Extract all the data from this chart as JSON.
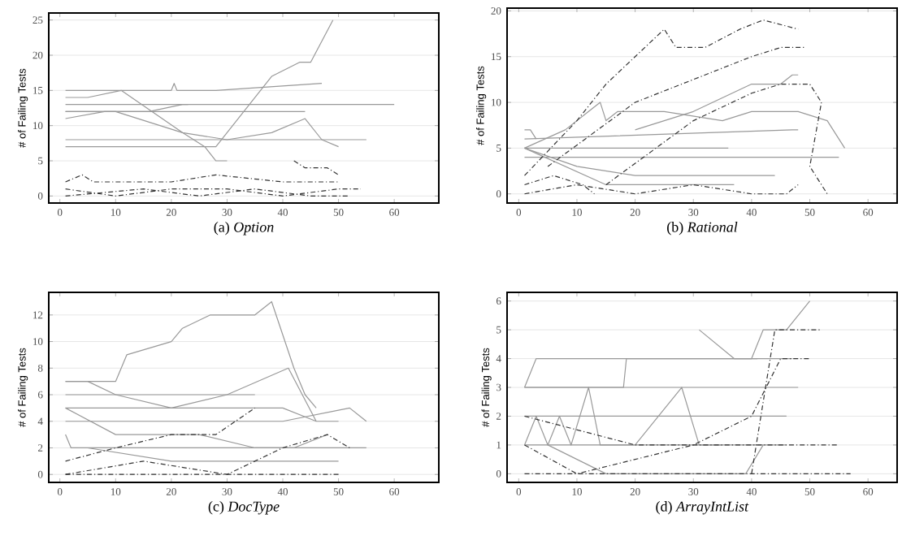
{
  "chart_data": [
    {
      "type": "line",
      "title": "(a) *Option*",
      "ylabel": "# of Failing Tests",
      "xlim": [
        -2,
        68
      ],
      "ylim": [
        -1,
        26
      ],
      "xticks": [
        0,
        10,
        20,
        30,
        40,
        50,
        60
      ],
      "yticks": [
        0,
        5,
        10,
        15,
        20,
        25
      ],
      "grid": "y",
      "series": [
        {
          "color": "#999999",
          "line_style": "solid",
          "x": [
            1,
            28,
            38,
            43,
            45,
            49
          ],
          "values": [
            7,
            7,
            17,
            19,
            19,
            25
          ]
        },
        {
          "color": "#999999",
          "line_style": "solid",
          "x": [
            1,
            20,
            20.5,
            21,
            28,
            47
          ],
          "values": [
            15,
            15,
            16,
            15,
            15,
            16
          ]
        },
        {
          "color": "#999999",
          "line_style": "solid",
          "x": [
            1,
            60
          ],
          "values": [
            13,
            13
          ]
        },
        {
          "color": "#999999",
          "line_style": "solid",
          "x": [
            1,
            10,
            14,
            22,
            30,
            38,
            44,
            47,
            50
          ],
          "values": [
            12,
            12,
            11,
            9,
            8,
            9,
            11,
            8,
            7
          ]
        },
        {
          "color": "#999999",
          "line_style": "solid",
          "x": [
            1,
            5,
            11,
            22,
            26,
            28,
            30
          ],
          "values": [
            14,
            14,
            15,
            9,
            7,
            5,
            5
          ]
        },
        {
          "color": "#999999",
          "line_style": "solid",
          "x": [
            1,
            55
          ],
          "values": [
            8,
            8
          ]
        },
        {
          "color": "#999999",
          "line_style": "solid",
          "x": [
            1,
            8,
            16,
            22,
            23
          ],
          "values": [
            11,
            12,
            12,
            13,
            13
          ]
        },
        {
          "color": "#999999",
          "line_style": "solid",
          "x": [
            1,
            44
          ],
          "values": [
            12,
            12
          ]
        },
        {
          "color": "#333333",
          "line_style": "dashed",
          "x": [
            1,
            4,
            6,
            20,
            28,
            40,
            50
          ],
          "values": [
            2,
            3,
            2,
            2,
            3,
            2,
            2
          ]
        },
        {
          "color": "#333333",
          "line_style": "dashed",
          "x": [
            1,
            10,
            20,
            30,
            40,
            50,
            54
          ],
          "values": [
            1,
            0,
            1,
            1,
            0,
            1,
            1
          ]
        },
        {
          "color": "#333333",
          "line_style": "dashed",
          "x": [
            1,
            15,
            25,
            35,
            45,
            52
          ],
          "values": [
            0,
            1,
            0,
            1,
            0,
            0
          ]
        },
        {
          "color": "#333333",
          "line_style": "dashed",
          "x": [
            42,
            44,
            48,
            50
          ],
          "values": [
            5,
            4,
            4,
            3
          ]
        }
      ]
    },
    {
      "type": "line",
      "title": "(b) *Rational*",
      "ylabel": "# of Failing Tests",
      "xlim": [
        -2,
        65
      ],
      "ylim": [
        -1,
        20.3
      ],
      "xticks": [
        0,
        10,
        20,
        30,
        40,
        50,
        60
      ],
      "yticks": [
        0,
        5,
        10,
        15,
        20
      ],
      "grid": "y",
      "series": [
        {
          "color": "#999999",
          "line_style": "solid",
          "x": [
            1,
            8,
            12,
            14,
            15,
            17,
            25,
            35,
            40,
            48,
            53,
            56
          ],
          "values": [
            5,
            7,
            9,
            10,
            8,
            9,
            9,
            8,
            9,
            9,
            8,
            5
          ]
        },
        {
          "color": "#999999",
          "line_style": "solid",
          "x": [
            1,
            47,
            48
          ],
          "values": [
            6,
            7,
            7
          ]
        },
        {
          "color": "#999999",
          "line_style": "solid",
          "x": [
            1,
            36
          ],
          "values": [
            5,
            5
          ]
        },
        {
          "color": "#999999",
          "line_style": "solid",
          "x": [
            1,
            55
          ],
          "values": [
            4,
            4
          ]
        },
        {
          "color": "#999999",
          "line_style": "solid",
          "x": [
            1,
            10,
            20,
            44
          ],
          "values": [
            5,
            3,
            2,
            2
          ]
        },
        {
          "color": "#999999",
          "line_style": "solid",
          "x": [
            1,
            2,
            3
          ],
          "values": [
            7,
            7,
            6
          ]
        },
        {
          "color": "#999999",
          "line_style": "solid",
          "x": [
            20,
            30,
            40,
            45,
            47,
            48
          ],
          "values": [
            7,
            9,
            12,
            12,
            13,
            13
          ]
        },
        {
          "color": "#999999",
          "line_style": "solid",
          "x": [
            1,
            15,
            37
          ],
          "values": [
            5,
            1,
            1
          ]
        },
        {
          "color": "#333333",
          "line_style": "dashed",
          "x": [
            1,
            10,
            15,
            20,
            25,
            27,
            32,
            38,
            42,
            48
          ],
          "values": [
            2,
            8,
            12,
            15,
            18,
            16,
            16,
            18,
            19,
            18
          ]
        },
        {
          "color": "#333333",
          "line_style": "dashed",
          "x": [
            5,
            20,
            40,
            45,
            49
          ],
          "values": [
            3,
            10,
            15,
            16,
            16
          ]
        },
        {
          "color": "#333333",
          "line_style": "dashed",
          "x": [
            15,
            30,
            40,
            45,
            50,
            52,
            50,
            53
          ],
          "values": [
            1,
            8,
            11,
            12,
            12,
            10,
            3,
            0
          ]
        },
        {
          "color": "#333333",
          "line_style": "dashed",
          "x": [
            1,
            10,
            20,
            30,
            40,
            46,
            48
          ],
          "values": [
            0,
            1,
            0,
            1,
            0,
            0,
            1
          ]
        },
        {
          "color": "#333333",
          "line_style": "dashed",
          "x": [
            1,
            6,
            11,
            13
          ],
          "values": [
            1,
            2,
            1,
            0
          ]
        }
      ]
    },
    {
      "type": "line",
      "title": "(c) *DocType*",
      "ylabel": "# of Failing Tests",
      "xlim": [
        -2,
        68
      ],
      "ylim": [
        -0.6,
        13.7
      ],
      "xticks": [
        0,
        10,
        20,
        30,
        40,
        50,
        60
      ],
      "yticks": [
        0,
        2,
        4,
        6,
        8,
        10,
        12
      ],
      "grid": "y",
      "series": [
        {
          "color": "#999999",
          "line_style": "solid",
          "x": [
            1,
            10,
            12,
            20,
            22,
            27,
            35,
            38,
            42,
            44,
            46
          ],
          "values": [
            7,
            7,
            9,
            10,
            11,
            12,
            12,
            13,
            8,
            6,
            5
          ]
        },
        {
          "color": "#999999",
          "line_style": "solid",
          "x": [
            1,
            40,
            46,
            50
          ],
          "values": [
            5,
            5,
            4,
            4
          ]
        },
        {
          "color": "#999999",
          "line_style": "solid",
          "x": [
            1,
            40,
            52,
            55
          ],
          "values": [
            4,
            4,
            5,
            4
          ]
        },
        {
          "color": "#999999",
          "line_style": "solid",
          "x": [
            1,
            35
          ],
          "values": [
            6,
            6
          ]
        },
        {
          "color": "#999999",
          "line_style": "solid",
          "x": [
            1,
            10,
            25,
            35,
            55
          ],
          "values": [
            5,
            3,
            3,
            2,
            2
          ]
        },
        {
          "color": "#999999",
          "line_style": "solid",
          "x": [
            1,
            2,
            20,
            42,
            48
          ],
          "values": [
            3,
            2,
            2,
            2,
            3
          ]
        },
        {
          "color": "#999999",
          "line_style": "solid",
          "x": [
            5,
            20,
            35,
            50
          ],
          "values": [
            2,
            1,
            1,
            1
          ]
        },
        {
          "color": "#999999",
          "line_style": "solid",
          "x": [
            1,
            5,
            10,
            20,
            30,
            41,
            46
          ],
          "values": [
            7,
            7,
            6,
            5,
            6,
            8,
            4
          ]
        },
        {
          "color": "#333333",
          "line_style": "dashed",
          "x": [
            1,
            10,
            20,
            28,
            35
          ],
          "values": [
            1,
            2,
            3,
            3,
            5
          ]
        },
        {
          "color": "#333333",
          "line_style": "dashed",
          "x": [
            1,
            15,
            30,
            40,
            48,
            52
          ],
          "values": [
            0,
            1,
            0,
            2,
            3,
            2
          ]
        },
        {
          "color": "#333333",
          "line_style": "dashed",
          "x": [
            1,
            20,
            40,
            50
          ],
          "values": [
            0,
            0,
            0,
            0
          ]
        }
      ]
    },
    {
      "type": "line",
      "title": "(d) *ArrayIntList*",
      "ylabel": "# of Failing Tests",
      "xlim": [
        -2,
        65
      ],
      "ylim": [
        -0.3,
        6.3
      ],
      "xticks": [
        0,
        10,
        20,
        30,
        40,
        50,
        60
      ],
      "yticks": [
        0,
        1,
        2,
        3,
        4,
        5,
        6
      ],
      "grid": "y",
      "series": [
        {
          "color": "#999999",
          "line_style": "solid",
          "x": [
            1,
            3,
            47
          ],
          "values": [
            3,
            4,
            4
          ]
        },
        {
          "color": "#999999",
          "line_style": "solid",
          "x": [
            1,
            18,
            18.5,
            40,
            42,
            46,
            50
          ],
          "values": [
            3,
            3,
            4,
            4,
            5,
            5,
            6
          ]
        },
        {
          "color": "#999999",
          "line_style": "solid",
          "x": [
            1,
            46
          ],
          "values": [
            2,
            2
          ]
        },
        {
          "color": "#999999",
          "line_style": "solid",
          "x": [
            1,
            46
          ],
          "values": [
            1,
            1
          ]
        },
        {
          "color": "#999999",
          "line_style": "solid",
          "x": [
            1,
            4,
            48
          ],
          "values": [
            3,
            3,
            3
          ]
        },
        {
          "color": "#999999",
          "line_style": "solid",
          "x": [
            1,
            3,
            5,
            7,
            9,
            12,
            14,
            20,
            28,
            31,
            35
          ],
          "values": [
            1,
            2,
            1,
            2,
            1,
            3,
            1,
            1,
            3,
            1,
            1
          ]
        },
        {
          "color": "#999999",
          "line_style": "solid",
          "x": [
            31,
            37,
            41
          ],
          "values": [
            5,
            4,
            4
          ]
        },
        {
          "color": "#999999",
          "line_style": "solid",
          "x": [
            5,
            15,
            39,
            42
          ],
          "values": [
            1,
            0,
            0,
            1
          ]
        },
        {
          "color": "#333333",
          "line_style": "dashed",
          "x": [
            1,
            20,
            40,
            57
          ],
          "values": [
            0,
            0,
            0,
            0
          ]
        },
        {
          "color": "#333333",
          "line_style": "dashed",
          "x": [
            1,
            10,
            30,
            40,
            45,
            50
          ],
          "values": [
            1,
            0,
            1,
            2,
            4,
            4
          ]
        },
        {
          "color": "#333333",
          "line_style": "dashed",
          "x": [
            40,
            44,
            52
          ],
          "values": [
            0,
            5,
            5
          ]
        },
        {
          "color": "#333333",
          "line_style": "dashed",
          "x": [
            1,
            20,
            40,
            55
          ],
          "values": [
            2,
            1,
            1,
            1
          ]
        }
      ]
    }
  ]
}
